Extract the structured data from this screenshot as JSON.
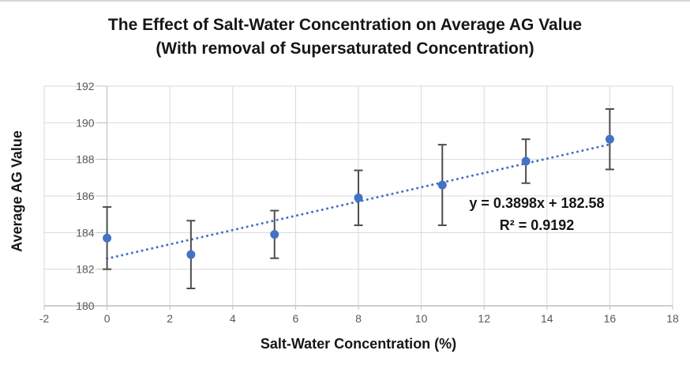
{
  "chart_data": {
    "type": "scatter",
    "title_line1": "The Effect of Salt-Water Concentration on Average AG Value",
    "title_line2": "(With removal of Supersaturated Concentration)",
    "xlabel": "Salt-Water Concentration (%)",
    "ylabel": "Average AG Value",
    "xlim": [
      -2,
      18
    ],
    "ylim": [
      180,
      192
    ],
    "x_ticks": [
      -2,
      0,
      2,
      4,
      6,
      8,
      10,
      12,
      14,
      16,
      18
    ],
    "y_ticks": [
      180,
      182,
      184,
      186,
      188,
      190,
      192
    ],
    "grid": true,
    "legend": "none",
    "points": [
      {
        "x": 0,
        "y": 183.7,
        "err": 1.7
      },
      {
        "x": 2.67,
        "y": 182.8,
        "err": 1.85
      },
      {
        "x": 5.33,
        "y": 183.9,
        "err": 1.3
      },
      {
        "x": 8,
        "y": 185.9,
        "err": 1.5
      },
      {
        "x": 10.67,
        "y": 186.6,
        "err": 2.2
      },
      {
        "x": 13.33,
        "y": 187.9,
        "err": 1.2
      },
      {
        "x": 16,
        "y": 189.1,
        "err": 1.65
      }
    ],
    "trendline": {
      "slope": 0.3898,
      "intercept": 182.58,
      "x_start": 0,
      "x_end": 16,
      "label_equation": "y = 0.3898x + 182.58",
      "label_r2": "R² = 0.9192"
    },
    "colors": {
      "point": "#4472C4",
      "trendline": "#4472C4",
      "error_bar": "#4d4d4d",
      "gridline": "#D9D9D9",
      "axis_line": "#BFBFBF",
      "tick_label": "#595959",
      "title": "#161616"
    }
  }
}
